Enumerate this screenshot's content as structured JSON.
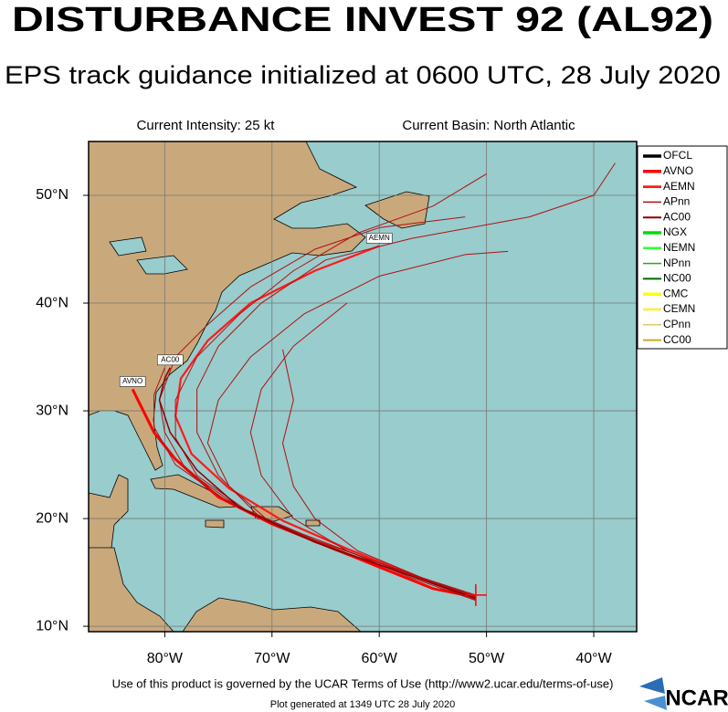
{
  "chart_data": {
    "type": "track_map",
    "title": "DISTURBANCE INVEST 92 (AL92)",
    "subtitle": "EPS track guidance initialized at 0600 UTC, 28 July 2020",
    "current_intensity": "Current Intensity: 25 kt",
    "current_basin": "Current Basin: North Atlantic",
    "footer": "Use of this product is governed by the UCAR Terms of Use (http://www2.ucar.edu/terms-of-use)",
    "generated": "Plot generated at 1349 UTC  28 July 2020",
    "logo": "NCAR",
    "xlim": [
      -87.1,
      -36.0
    ],
    "ylim": [
      9.5,
      55
    ],
    "xticks": [
      {
        "value": -80,
        "label": "80°W"
      },
      {
        "value": -70,
        "label": "70°W"
      },
      {
        "value": -60,
        "label": "60°W"
      },
      {
        "value": -50,
        "label": "50°W"
      },
      {
        "value": -40,
        "label": "40°W"
      }
    ],
    "yticks": [
      {
        "value": 10,
        "label": "10°N"
      },
      {
        "value": 20,
        "label": "20°N"
      },
      {
        "value": 30,
        "label": "30°N"
      },
      {
        "value": 40,
        "label": "40°N"
      },
      {
        "value": 50,
        "label": "50°N"
      }
    ],
    "grid": true,
    "current_position": {
      "lon": -51,
      "lat": 12.9,
      "color": "#ff0000"
    },
    "series": [
      {
        "name": "OFCL",
        "color": "#000000",
        "width": 3,
        "tracks": []
      },
      {
        "name": "AVNO",
        "color": "#ff0000",
        "width": 3,
        "tracks": [
          {
            "label": "AVNO",
            "lon": [
              -51,
              -55,
              -60,
              -65,
              -70,
              -75,
              -79,
              -81,
              -82,
              -83
            ],
            "lat": [
              12.7,
              13.5,
              15.5,
              17.5,
              19.5,
              22,
              25.5,
              28,
              30,
              32
            ]
          }
        ]
      },
      {
        "name": "AEMN",
        "color": "#ff1a1a",
        "width": 2.2,
        "tracks": [
          {
            "label": "AEMN",
            "lon": [
              -51,
              -57,
              -63,
              -69,
              -74,
              -77.5,
              -79,
              -78.5,
              -76,
              -72,
              -66,
              -60
            ],
            "lat": [
              12.7,
              14.8,
              17.2,
              19.8,
              22.8,
              26,
              29.5,
              33,
              36.5,
              40,
              43,
              45.3
            ]
          }
        ]
      },
      {
        "name": "APnn",
        "color": "#b01010",
        "width": 1,
        "tracks": [
          {
            "lon": [
              -51,
              -58,
              -65,
              -71,
              -75,
              -77,
              -77,
              -75,
              -71,
              -65,
              -57,
              -46,
              -40,
              -38
            ],
            "lat": [
              12.5,
              15,
              17.5,
              20,
              24,
              28,
              32,
              36,
              40,
              44,
              46,
              48,
              50,
              53
            ]
          },
          {
            "lon": [
              -51,
              -57,
              -64,
              -70,
              -74,
              -76,
              -75,
              -72,
              -67,
              -60,
              -52,
              -48
            ],
            "lat": [
              12.8,
              14.8,
              17,
              19.5,
              23,
              27,
              31,
              35,
              39,
              42.5,
              44.5,
              44.8
            ]
          },
          {
            "lon": [
              -51,
              -58,
              -66,
              -73,
              -78,
              -80,
              -80.5,
              -79,
              -76,
              -72,
              -66,
              -60,
              -52
            ],
            "lat": [
              12.6,
              15.2,
              18,
              21,
              24.5,
              28,
              31,
              35,
              38,
              41.5,
              45,
              47,
              48
            ]
          },
          {
            "lon": [
              -51,
              -57,
              -63,
              -68,
              -71,
              -72,
              -71,
              -68,
              -63
            ],
            "lat": [
              12.4,
              14.5,
              17,
              20,
              24,
              28,
              32,
              36,
              40
            ]
          },
          {
            "lon": [
              -51,
              -59,
              -67,
              -74,
              -79,
              -81,
              -81,
              -80
            ],
            "lat": [
              12.7,
              15.5,
              18.5,
              21.5,
              25,
              28.5,
              31.5,
              34
            ]
          },
          {
            "lon": [
              -51,
              -56,
              -62,
              -66,
              -68,
              -69,
              -68,
              -69
            ],
            "lat": [
              12.9,
              14.5,
              17,
              20,
              23,
              27,
              31,
              35.7
            ]
          },
          {
            "lon": [
              -51,
              -58,
              -65,
              -72,
              -77,
              -79,
              -79,
              -77,
              -73,
              -68,
              -62,
              -55,
              -50
            ],
            "lat": [
              12.5,
              15,
              17.5,
              20.5,
              24,
              27.5,
              31,
              35,
              39,
              43,
              46.5,
              49,
              52
            ]
          }
        ]
      },
      {
        "name": "AC00",
        "color": "#8b0000",
        "width": 1.5,
        "tracks": [
          {
            "label": "AC00",
            "lon": [
              -51,
              -58,
              -66,
              -73,
              -77,
              -79.5,
              -80.5,
              -80,
              -79.5
            ],
            "lat": [
              12.6,
              15,
              17.8,
              21,
              24.5,
              28,
              31,
              33,
              34
            ]
          }
        ]
      },
      {
        "name": "NGX",
        "color": "#00dd00",
        "width": 3,
        "tracks": []
      },
      {
        "name": "NEMN",
        "color": "#33ff33",
        "width": 2,
        "tracks": []
      },
      {
        "name": "NPnn",
        "color": "#22aa22",
        "width": 1,
        "tracks": []
      },
      {
        "name": "NC00",
        "color": "#006600",
        "width": 1.5,
        "tracks": []
      },
      {
        "name": "CMC",
        "color": "#ffff00",
        "width": 3,
        "tracks": []
      },
      {
        "name": "CEMN",
        "color": "#ffee33",
        "width": 2,
        "tracks": []
      },
      {
        "name": "CPnn",
        "color": "#ddcc66",
        "width": 1,
        "tracks": []
      },
      {
        "name": "CC00",
        "color": "#ccaa22",
        "width": 1.5,
        "tracks": []
      }
    ]
  }
}
